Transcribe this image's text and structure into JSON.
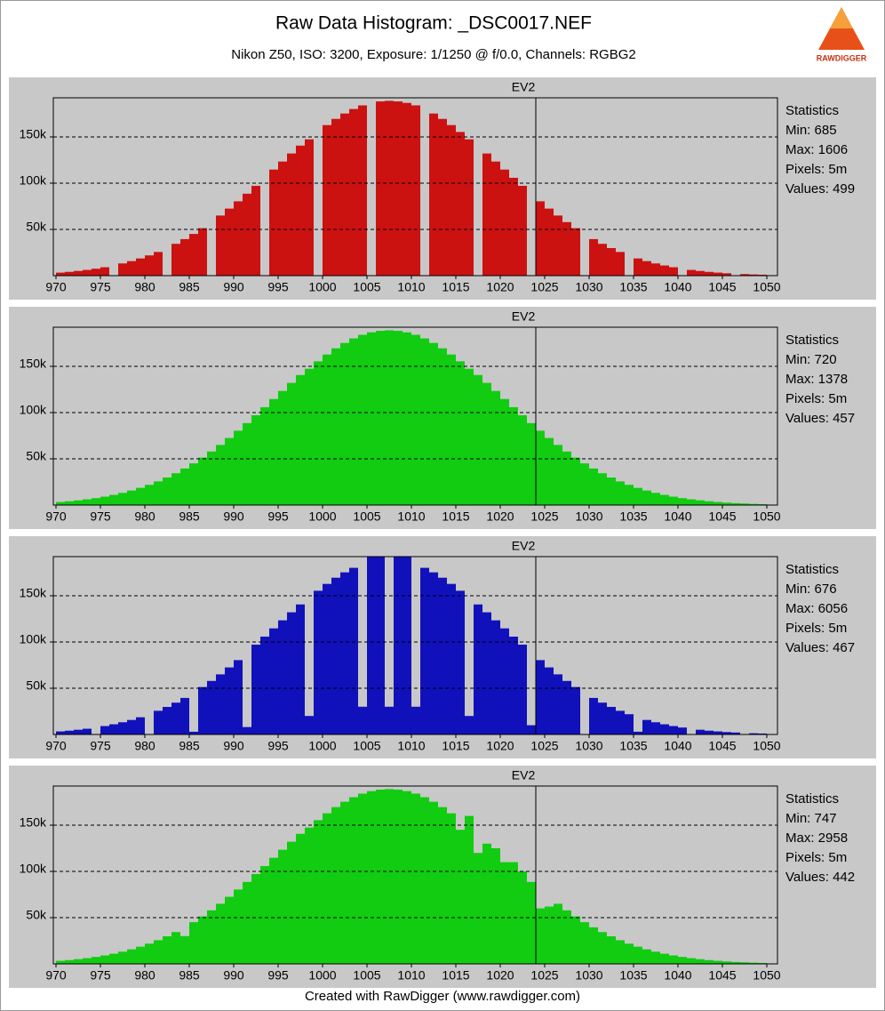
{
  "header": {
    "title": "Raw Data Histogram: _DSC0017.NEF",
    "subtitle": "Nikon Z50, ISO: 3200, Exposure: 1/1250 @ f/0.0, Channels: RGBG2",
    "logo_text": "RAWDIGGER"
  },
  "footer": "Created with RawDigger (www.rawdigger.com)",
  "chart_data": [
    {
      "type": "histogram",
      "color": "#cc1111",
      "bins": [
        970,
        971,
        972,
        973,
        974,
        975,
        976,
        977,
        978,
        979,
        980,
        981,
        982,
        983,
        984,
        985,
        986,
        987,
        988,
        989,
        990,
        991,
        992,
        993,
        994,
        995,
        996,
        997,
        998,
        999,
        1000,
        1001,
        1002,
        1003,
        1004,
        1005,
        1006,
        1007,
        1008,
        1009,
        1010,
        1011,
        1012,
        1013,
        1014,
        1015,
        1016,
        1017,
        1018,
        1019,
        1020,
        1021,
        1022,
        1023,
        1024,
        1025,
        1026,
        1027,
        1028,
        1029,
        1030,
        1031,
        1032,
        1033,
        1034,
        1035,
        1036,
        1037,
        1038,
        1039,
        1040,
        1041,
        1042,
        1043,
        1044,
        1045,
        1046,
        1047,
        1048,
        1049,
        1050
      ],
      "values": [
        3300,
        4100,
        5100,
        6200,
        7500,
        9100,
        0,
        13200,
        15700,
        18600,
        21900,
        25600,
        0,
        34400,
        39500,
        45100,
        51300,
        0,
        65000,
        72500,
        80400,
        88600,
        97100,
        0,
        114700,
        123400,
        132100,
        140600,
        147400,
        0,
        162800,
        169500,
        175300,
        180200,
        184100,
        0,
        188400,
        189000,
        188400,
        186800,
        184100,
        0,
        175300,
        169500,
        162800,
        155400,
        147400,
        0,
        132100,
        123400,
        114700,
        105800,
        97100,
        0,
        80400,
        72500,
        65000,
        57900,
        51300,
        0,
        39500,
        34400,
        29800,
        25600,
        0,
        18600,
        15700,
        13200,
        11000,
        9100,
        0,
        6200,
        5100,
        4100,
        3300,
        2600,
        0,
        1700,
        1300,
        1000
      ],
      "xlim": [
        969.7,
        1051.2
      ],
      "ylim": [
        0,
        192300
      ],
      "xticks": [
        970,
        975,
        980,
        985,
        990,
        995,
        1000,
        1005,
        1010,
        1015,
        1020,
        1025,
        1030,
        1035,
        1040,
        1045,
        1050
      ],
      "yticks": [
        {
          "value": 50000,
          "label": "50k"
        },
        {
          "value": 100000,
          "label": "100k"
        },
        {
          "value": 150000,
          "label": "150k"
        }
      ],
      "grid": true,
      "annotation": {
        "label": "EV2",
        "x": 1024
      },
      "stats": [
        "Statistics",
        "Min: 685",
        "Max: 1606",
        "Pixels: 5m",
        "Values: 499"
      ]
    },
    {
      "type": "histogram",
      "color": "#11cc11",
      "bins": [
        970,
        971,
        972,
        973,
        974,
        975,
        976,
        977,
        978,
        979,
        980,
        981,
        982,
        983,
        984,
        985,
        986,
        987,
        988,
        989,
        990,
        991,
        992,
        993,
        994,
        995,
        996,
        997,
        998,
        999,
        1000,
        1001,
        1002,
        1003,
        1004,
        1005,
        1006,
        1007,
        1008,
        1009,
        1010,
        1011,
        1012,
        1013,
        1014,
        1015,
        1016,
        1017,
        1018,
        1019,
        1020,
        1021,
        1022,
        1023,
        1024,
        1025,
        1026,
        1027,
        1028,
        1029,
        1030,
        1031,
        1032,
        1033,
        1034,
        1035,
        1036,
        1037,
        1038,
        1039,
        1040,
        1041,
        1042,
        1043,
        1044,
        1045,
        1046,
        1047,
        1048,
        1049,
        1050
      ],
      "values": [
        3300,
        4100,
        5100,
        6200,
        7500,
        9100,
        11000,
        13200,
        15700,
        18600,
        21900,
        25600,
        29800,
        34400,
        39500,
        45100,
        51300,
        57900,
        65000,
        72500,
        80400,
        88600,
        97100,
        105800,
        114700,
        123400,
        132100,
        140600,
        147400,
        155400,
        162800,
        169500,
        175300,
        180200,
        184100,
        186800,
        188400,
        189000,
        188400,
        186800,
        184100,
        180200,
        175300,
        169500,
        162800,
        155400,
        147400,
        140600,
        132100,
        123400,
        114700,
        105800,
        97100,
        88600,
        80400,
        72500,
        65000,
        57900,
        51300,
        45100,
        39500,
        34400,
        29800,
        25600,
        21900,
        18600,
        15700,
        13200,
        11000,
        9100,
        7500,
        6200,
        5100,
        4100,
        3300,
        2600,
        2100,
        1700,
        1300,
        1000
      ],
      "xlim": [
        969.7,
        1051.2
      ],
      "ylim": [
        0,
        192300
      ],
      "xticks": [
        970,
        975,
        980,
        985,
        990,
        995,
        1000,
        1005,
        1010,
        1015,
        1020,
        1025,
        1030,
        1035,
        1040,
        1045,
        1050
      ],
      "yticks": [
        {
          "value": 50000,
          "label": "50k"
        },
        {
          "value": 100000,
          "label": "100k"
        },
        {
          "value": 150000,
          "label": "150k"
        }
      ],
      "grid": true,
      "annotation": {
        "label": "EV2",
        "x": 1024
      },
      "stats": [
        "Statistics",
        "Min: 720",
        "Max: 1378",
        "Pixels: 5m",
        "Values: 457"
      ]
    },
    {
      "type": "histogram",
      "color": "#1111bb",
      "bins": [
        970,
        971,
        972,
        973,
        974,
        975,
        976,
        977,
        978,
        979,
        980,
        981,
        982,
        983,
        984,
        985,
        986,
        987,
        988,
        989,
        990,
        991,
        992,
        993,
        994,
        995,
        996,
        997,
        998,
        999,
        1000,
        1001,
        1002,
        1003,
        1004,
        1005,
        1006,
        1007,
        1008,
        1009,
        1010,
        1011,
        1012,
        1013,
        1014,
        1015,
        1016,
        1017,
        1018,
        1019,
        1020,
        1021,
        1022,
        1023,
        1024,
        1025,
        1026,
        1027,
        1028,
        1029,
        1030,
        1031,
        1032,
        1033,
        1034,
        1035,
        1036,
        1037,
        1038,
        1039,
        1040,
        1041,
        1042,
        1043,
        1044,
        1045,
        1046,
        1047,
        1048,
        1049,
        1050
      ],
      "values": [
        3300,
        4100,
        5100,
        6200,
        0,
        9100,
        11000,
        13200,
        15700,
        18600,
        0,
        25600,
        29800,
        34400,
        39500,
        3000,
        51300,
        57900,
        65000,
        72500,
        80400,
        8000,
        97100,
        105800,
        114700,
        123400,
        132100,
        140600,
        20000,
        155400,
        162800,
        169500,
        175300,
        180200,
        30000,
        192000,
        192000,
        30000,
        192000,
        192000,
        30000,
        180200,
        175300,
        169500,
        162800,
        155400,
        20000,
        140600,
        132100,
        123400,
        114700,
        105800,
        97100,
        10000,
        80400,
        72500,
        65000,
        57900,
        51300,
        0,
        39500,
        34400,
        29800,
        25600,
        21900,
        3000,
        15700,
        13200,
        11000,
        9100,
        7500,
        0,
        5100,
        4100,
        3300,
        2600,
        2100,
        0,
        1300,
        1000
      ],
      "xlim": [
        969.7,
        1051.2
      ],
      "ylim": [
        0,
        192300
      ],
      "xticks": [
        970,
        975,
        980,
        985,
        990,
        995,
        1000,
        1005,
        1010,
        1015,
        1020,
        1025,
        1030,
        1035,
        1040,
        1045,
        1050
      ],
      "yticks": [
        {
          "value": 50000,
          "label": "50k"
        },
        {
          "value": 100000,
          "label": "100k"
        },
        {
          "value": 150000,
          "label": "150k"
        }
      ],
      "grid": true,
      "annotation": {
        "label": "EV2",
        "x": 1024
      },
      "stats": [
        "Statistics",
        "Min: 676",
        "Max: 6056",
        "Pixels: 5m",
        "Values: 467"
      ]
    },
    {
      "type": "histogram",
      "color": "#11cc11",
      "bins": [
        970,
        971,
        972,
        973,
        974,
        975,
        976,
        977,
        978,
        979,
        980,
        981,
        982,
        983,
        984,
        985,
        986,
        987,
        988,
        989,
        990,
        991,
        992,
        993,
        994,
        995,
        996,
        997,
        998,
        999,
        1000,
        1001,
        1002,
        1003,
        1004,
        1005,
        1006,
        1007,
        1008,
        1009,
        1010,
        1011,
        1012,
        1013,
        1014,
        1015,
        1016,
        1017,
        1018,
        1019,
        1020,
        1021,
        1022,
        1023,
        1024,
        1025,
        1026,
        1027,
        1028,
        1029,
        1030,
        1031,
        1032,
        1033,
        1034,
        1035,
        1036,
        1037,
        1038,
        1039,
        1040,
        1041,
        1042,
        1043,
        1044,
        1045,
        1046,
        1047,
        1048,
        1049,
        1050
      ],
      "values": [
        3300,
        4100,
        5100,
        6200,
        7500,
        9100,
        11000,
        13200,
        15700,
        18600,
        21900,
        25600,
        29800,
        34400,
        30000,
        45100,
        51300,
        57900,
        65000,
        72500,
        80400,
        88600,
        97100,
        105800,
        114700,
        123400,
        132100,
        140600,
        147400,
        155400,
        162800,
        169500,
        175300,
        180200,
        184100,
        186800,
        188400,
        189000,
        188400,
        186800,
        184100,
        180200,
        175300,
        169500,
        162800,
        145000,
        160000,
        120000,
        130000,
        125000,
        110000,
        110000,
        100000,
        88600,
        60000,
        62000,
        65000,
        57900,
        51300,
        45100,
        39500,
        34400,
        29800,
        25600,
        21900,
        18600,
        15700,
        13200,
        11000,
        9100,
        7500,
        6200,
        5100,
        4100,
        3300,
        2600,
        2100,
        1700,
        1300,
        1000
      ],
      "xlim": [
        969.7,
        1051.2
      ],
      "ylim": [
        0,
        192300
      ],
      "xticks": [
        970,
        975,
        980,
        985,
        990,
        995,
        1000,
        1005,
        1010,
        1015,
        1020,
        1025,
        1030,
        1035,
        1040,
        1045,
        1050
      ],
      "yticks": [
        {
          "value": 50000,
          "label": "50k"
        },
        {
          "value": 100000,
          "label": "100k"
        },
        {
          "value": 150000,
          "label": "150k"
        }
      ],
      "grid": true,
      "annotation": {
        "label": "EV2",
        "x": 1024
      },
      "stats": [
        "Statistics",
        "Min: 747",
        "Max: 2958",
        "Pixels: 5m",
        "Values: 442"
      ]
    }
  ]
}
